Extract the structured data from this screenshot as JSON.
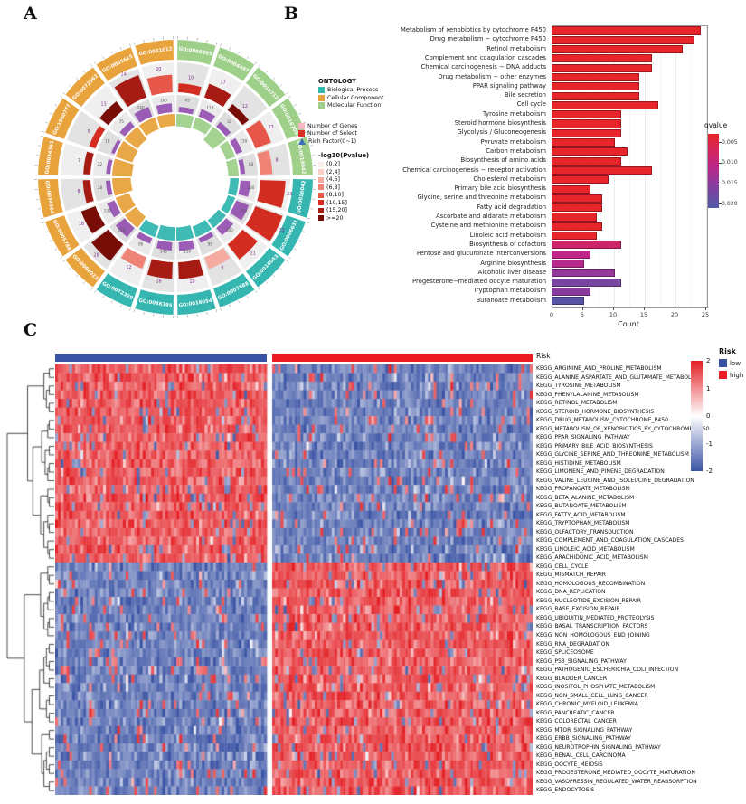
{
  "panels": {
    "a_label": "A",
    "b_label": "B",
    "c_label": "C"
  },
  "chart_data": [
    {
      "type": "circular_go_enrichment",
      "panel": "A",
      "ontology_legend": {
        "title": "ONTOLOGY",
        "entries": [
          {
            "label": "Biological Process",
            "color": "#35B6B0"
          },
          {
            "label": "Cellular Component",
            "color": "#E8A33D"
          },
          {
            "label": "Molecular Function",
            "color": "#9FD08A"
          }
        ]
      },
      "ring_legend": [
        {
          "label": "Number of Genes",
          "color": "#F7B6C2",
          "shape": "square"
        },
        {
          "label": "Number of Select",
          "color": "#D93025",
          "shape": "square"
        },
        {
          "label": "Rich Factor(0~1)",
          "color": "#3B6FB6",
          "shape": "triangle"
        }
      ],
      "pvalue_legend": {
        "title": "-log10(Pvalue)",
        "entries": [
          {
            "label": "(0,2]",
            "color": "#FDEBE7"
          },
          {
            "label": "(2,4]",
            "color": "#FACDC5"
          },
          {
            "label": "(4,6]",
            "color": "#F5ABA0"
          },
          {
            "label": "(6,8]",
            "color": "#EF8375"
          },
          {
            "label": "(8,10]",
            "color": "#E65749"
          },
          {
            "label": "(10,15]",
            "color": "#D32D22"
          },
          {
            "label": "(15,20]",
            "color": "#A61B13"
          },
          {
            "label": ">=20",
            "color": "#780D07"
          }
        ]
      },
      "segments": [
        {
          "id": "GO:0008395",
          "category": "Molecular Function",
          "genes": 45,
          "selected": 10,
          "rich_factor": 0.32,
          "neglog10p": 12
        },
        {
          "id": "GO:0004497",
          "category": "Molecular Function",
          "genes": 118,
          "selected": 17,
          "rich_factor": 0.28,
          "neglog10p": 18
        },
        {
          "id": "GO:0016712",
          "category": "Molecular Function",
          "genes": 32,
          "selected": 12,
          "rich_factor": 0.48,
          "neglog10p": 22
        },
        {
          "id": "GO:0016705",
          "category": "Molecular Function",
          "genes": 150,
          "selected": 13,
          "rich_factor": 0.22,
          "neglog10p": 9
        },
        {
          "id": "GO:0019842",
          "category": "Molecular Function",
          "genes": 88,
          "selected": 8,
          "rich_factor": 0.25,
          "neglog10p": 7
        },
        {
          "id": "GO:0016042",
          "category": "Biological Process",
          "genes": 260,
          "selected": 23,
          "rich_factor": 0.18,
          "neglog10p": 15
        },
        {
          "id": "GO:0006631",
          "category": "Biological Process",
          "genes": 310,
          "selected": 33,
          "rich_factor": 0.15,
          "neglog10p": 11
        },
        {
          "id": "GO:0016053",
          "category": "Biological Process",
          "genes": 180,
          "selected": 21,
          "rich_factor": 0.22,
          "neglog10p": 14
        },
        {
          "id": "GO:0007588",
          "category": "Biological Process",
          "genes": 95,
          "selected": 9,
          "rich_factor": 0.28,
          "neglog10p": 6
        },
        {
          "id": "GO:0016054",
          "category": "Biological Process",
          "genes": 150,
          "selected": 19,
          "rich_factor": 0.35,
          "neglog10p": 16
        },
        {
          "id": "GO:0046395",
          "category": "Biological Process",
          "genes": 145,
          "selected": 18,
          "rich_factor": 0.36,
          "neglog10p": 17
        },
        {
          "id": "GO:0072329",
          "category": "Biological Process",
          "genes": 90,
          "selected": 12,
          "rich_factor": 0.3,
          "neglog10p": 8
        },
        {
          "id": "GO:0062023",
          "category": "Cellular Component",
          "genes": 210,
          "selected": 28,
          "rich_factor": 0.38,
          "neglog10p": 25
        },
        {
          "id": "GO:0005788",
          "category": "Cellular Component",
          "genes": 130,
          "selected": 18,
          "rich_factor": 0.4,
          "neglog10p": 21
        },
        {
          "id": "GO:0034364",
          "category": "Cellular Component",
          "genes": 28,
          "selected": 8,
          "rich_factor": 0.55,
          "neglog10p": 19
        },
        {
          "id": "GO:0034361",
          "category": "Cellular Component",
          "genes": 22,
          "selected": 7,
          "rich_factor": 0.6,
          "neglog10p": 20
        },
        {
          "id": "GO:1990777",
          "category": "Cellular Component",
          "genes": 18,
          "selected": 5,
          "rich_factor": 0.52,
          "neglog10p": 13
        },
        {
          "id": "GO:0072562",
          "category": "Cellular Component",
          "genes": 75,
          "selected": 13,
          "rich_factor": 0.45,
          "neglog10p": 23
        },
        {
          "id": "GO:0005615",
          "category": "Cellular Component",
          "genes": 240,
          "selected": 24,
          "rich_factor": 0.33,
          "neglog10p": 17
        },
        {
          "id": "GO:0031012",
          "category": "Cellular Component",
          "genes": 160,
          "selected": 20,
          "rich_factor": 0.3,
          "neglog10p": 10
        }
      ]
    },
    {
      "type": "bar",
      "panel": "B",
      "orientation": "horizontal",
      "xlabel": "Count",
      "xlim": [
        0,
        25
      ],
      "x_ticks": [
        0,
        5,
        10,
        15,
        20,
        25
      ],
      "legend_title": "qvalue",
      "legend_tick_values": [
        0.005,
        0.01,
        0.015,
        0.02
      ],
      "legend_tick_labels": [
        "0.005",
        "0.010",
        "0.015",
        "0.020"
      ],
      "categories": [
        "Metabolism of xenobiotics by cytochrome P450",
        "Drug metabolism − cytochrome P450",
        "Retinol metabolism",
        "Complement and coagulation cascades",
        "Chemical carcinogenesis − DNA adducts",
        "Drug metabolism − other enzymes",
        "PPAR signaling pathway",
        "Bile secretion",
        "Cell cycle",
        "Tyrosine metabolism",
        "Steroid hormone biosynthesis",
        "Glycolysis / Gluconeogenesis",
        "Pyruvate metabolism",
        "Carbon metabolism",
        "Biosynthesis of amino acids",
        "Chemical carcinogenesis − receptor activation",
        "Cholesterol metabolism",
        "Primary bile acid biosynthesis",
        "Glycine, serine and threonine metabolism",
        "Fatty acid degradation",
        "Ascorbate and aldarate metabolism",
        "Cysteine and methionine metabolism",
        "Linoleic acid metabolism",
        "Biosynthesis of cofactors",
        "Pentose and glucuronate interconversions",
        "Arginine biosynthesis",
        "Alcoholic liver disease",
        "Progesterone−mediated oocyte maturation",
        "Tryptophan metabolism",
        "Butanoate metabolism"
      ],
      "values": [
        24,
        23,
        21,
        16,
        16,
        14,
        14,
        14,
        17,
        11,
        11,
        11,
        10,
        12,
        11,
        16,
        9,
        6,
        8,
        8,
        7,
        8,
        7,
        11,
        6,
        5,
        10,
        11,
        6,
        5
      ],
      "qvalues": [
        0.001,
        0.001,
        0.001,
        0.001,
        0.001,
        0.001,
        0.001,
        0.001,
        0.002,
        0.002,
        0.002,
        0.002,
        0.002,
        0.003,
        0.003,
        0.003,
        0.003,
        0.003,
        0.004,
        0.004,
        0.004,
        0.004,
        0.004,
        0.008,
        0.01,
        0.011,
        0.014,
        0.017,
        0.015,
        0.02
      ]
    },
    {
      "type": "heatmap",
      "panel": "C",
      "annotation_label": "Risk",
      "risk_legend": {
        "title": "Risk",
        "entries": [
          {
            "label": "low",
            "color": "#3953A4"
          },
          {
            "label": "high",
            "color": "#EC1C24"
          }
        ]
      },
      "value_scale": {
        "ticks": [
          2,
          1,
          0,
          -1,
          -2
        ],
        "max_color": "#E32025",
        "mid_color": "#FFFFFF",
        "min_color": "#3B54A5"
      },
      "col_groups": [
        {
          "name": "low",
          "color": "#3953A4",
          "n_cols": 75
        },
        {
          "name": "high",
          "color": "#EC1C24",
          "n_cols": 92
        }
      ],
      "cluster_split": 23,
      "block_pattern": [
        {
          "rows": "0-22",
          "low_group": "high",
          "high_group": "low"
        },
        {
          "rows": "23-49",
          "low_group": "low",
          "high_group": "high"
        }
      ],
      "rows": [
        "KEGG_ARGININE_AND_PROLINE_METABOLISM",
        "KEGG_ALANINE_ASPARTATE_AND_GLUTAMATE_METABOLISM",
        "KEGG_TYROSINE_METABOLISM",
        "KEGG_PHENYLALANINE_METABOLISM",
        "KEGG_RETINOL_METABOLISM",
        "KEGG_STEROID_HORMONE_BIOSYNTHESIS",
        "KEGG_DRUG_METABOLISM_CYTOCHROME_P450",
        "KEGG_METABOLISM_OF_XENOBIOTICS_BY_CYTOCHROME_P450",
        "KEGG_PPAR_SIGNALING_PATHWAY",
        "KEGG_PRIMARY_BILE_ACID_BIOSYNTHESIS",
        "KEGG_GLYCINE_SERINE_AND_THREONINE_METABOLISM",
        "KEGG_HISTIDINE_METABOLISM",
        "KEGG_LIMONENE_AND_PINENE_DEGRADATION",
        "KEGG_VALINE_LEUCINE_AND_ISOLEUCINE_DEGRADATION",
        "KEGG_PROPANOATE_METABOLISM",
        "KEGG_BETA_ALANINE_METABOLISM",
        "KEGG_BUTANOATE_METABOLISM",
        "KEGG_FATTY_ACID_METABOLISM",
        "KEGG_TRYPTOPHAN_METABOLISM",
        "KEGG_OLFACTORY_TRANSDUCTION",
        "KEGG_COMPLEMENT_AND_COAGULATION_CASCADES",
        "KEGG_LINOLEIC_ACID_METABOLISM",
        "KEGG_ARACHIDONIC_ACID_METABOLISM",
        "KEGG_CELL_CYCLE",
        "KEGG_MISMATCH_REPAIR",
        "KEGG_HOMOLOGOUS_RECOMBINATION",
        "KEGG_DNA_REPLICATION",
        "KEGG_NUCLEOTIDE_EXCISION_REPAIR",
        "KEGG_BASE_EXCISION_REPAIR",
        "KEGG_UBIQUITIN_MEDIATED_PROTEOLYSIS",
        "KEGG_BASAL_TRANSCRIPTION_FACTORS",
        "KEGG_NON_HOMOLOGOUS_END_JOINING",
        "KEGG_RNA_DEGRADATION",
        "KEGG_SPLICEOSOME",
        "KEGG_P53_SIGNALING_PATHWAY",
        "KEGG_PATHOGENIC_ESCHERICHIA_COLI_INFECTION",
        "KEGG_BLADDER_CANCER",
        "KEGG_INOSITOL_PHOSPHATE_METABOLISM",
        "KEGG_NON_SMALL_CELL_LUNG_CANCER",
        "KEGG_CHRONIC_MYELOID_LEUKEMIA",
        "KEGG_PANCREATIC_CANCER",
        "KEGG_COLORECTAL_CANCER",
        "KEGG_MTOR_SIGNALING_PATHWAY",
        "KEGG_ERBB_SIGNALING_PATHWAY",
        "KEGG_NEUROTROPHIN_SIGNALING_PATHWAY",
        "KEGG_RENAL_CELL_CARCINOMA",
        "KEGG_OOCYTE_MEIOSIS",
        "KEGG_PROGESTERONE_MEDIATED_OOCYTE_MATURATION",
        "KEGG_VASOPRESSIN_REGULATED_WATER_REABSORPTION",
        "KEGG_ENDOCYTOSIS"
      ]
    }
  ]
}
